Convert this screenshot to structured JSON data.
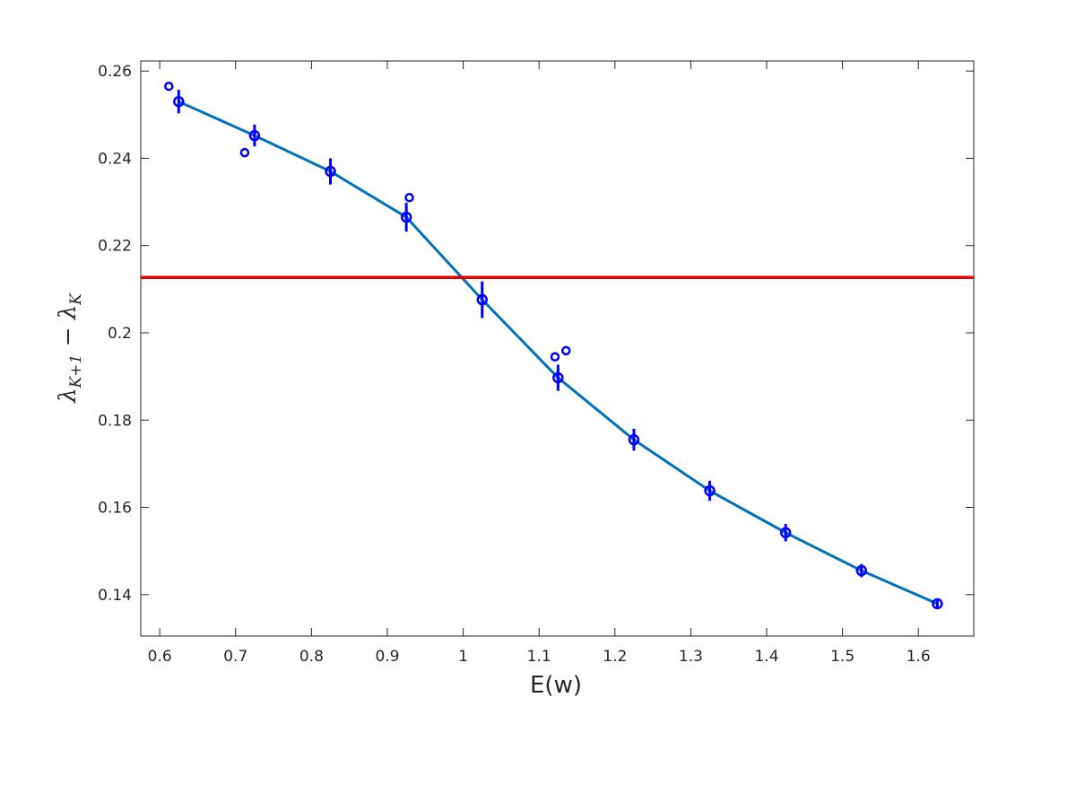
{
  "chart_data": {
    "type": "line",
    "xlabel": "E(w)",
    "ylabel_parts": [
      "λ",
      "K+1",
      " − λ",
      "K"
    ],
    "xlim": [
      0.575,
      1.673
    ],
    "ylim": [
      0.1305,
      0.2623
    ],
    "xticks": [
      0.6,
      0.7,
      0.8,
      0.9,
      1,
      1.1,
      1.2,
      1.3,
      1.4,
      1.5,
      1.6
    ],
    "yticks": [
      0.14,
      0.16,
      0.18,
      0.2,
      0.22,
      0.24,
      0.26
    ],
    "series": [
      {
        "color": "#0072bd",
        "marker_color": "#0000ff",
        "x": [
          0.625,
          0.725,
          0.825,
          0.925,
          1.025,
          1.125,
          1.225,
          1.325,
          1.425,
          1.525,
          1.625
        ],
        "values": [
          0.253,
          0.2452,
          0.237,
          0.2265,
          0.2076,
          0.1897,
          0.1755,
          0.1638,
          0.1542,
          0.1455,
          0.1379
        ],
        "errors": [
          0.0027,
          0.0025,
          0.003,
          0.0033,
          0.0042,
          0.003,
          0.0025,
          0.0023,
          0.002,
          0.0015,
          0.001
        ]
      }
    ],
    "points": {
      "color": "#0000ff",
      "x": [
        0.612,
        0.712,
        0.929,
        1.121,
        1.1355
      ],
      "values": [
        0.2565,
        0.2413,
        0.231,
        0.1945,
        0.1959
      ]
    },
    "hline": {
      "value": 0.2127,
      "color": "#e60000"
    }
  }
}
